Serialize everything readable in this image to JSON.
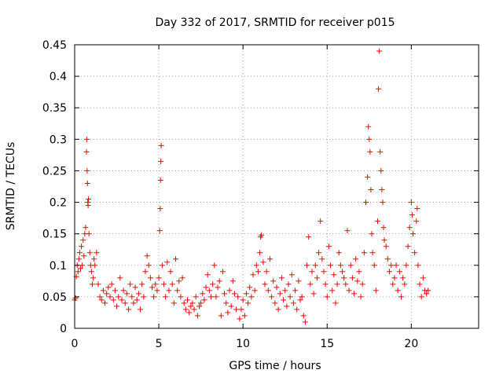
{
  "chart_data": {
    "type": "scatter",
    "title": "Day 332 of 2017, SRMTID for receiver p015",
    "xlabel": "GPS time / hours",
    "ylabel": "SRMTID / TECUs",
    "xlim": [
      0,
      24
    ],
    "ylim": [
      0,
      0.45
    ],
    "xticks": [
      0,
      5,
      10,
      15,
      20
    ],
    "xtick_labels": [
      "0",
      "5",
      "10",
      "15",
      "20"
    ],
    "yticks": [
      0,
      0.05,
      0.1,
      0.15,
      0.2,
      0.25,
      0.3,
      0.35,
      0.4,
      0.45
    ],
    "ytick_labels": [
      "0",
      "0.05",
      "0.1",
      "0.15",
      "0.2",
      "0.25",
      "0.3",
      "0.35",
      "0.4",
      "0.45"
    ],
    "grid": true,
    "marker": "plus",
    "color": "#ff0000",
    "series": [
      {
        "name": "SRMTID",
        "points": [
          [
            0.0,
            0.045
          ],
          [
            0.05,
            0.048
          ],
          [
            0.1,
            0.082
          ],
          [
            0.15,
            0.1
          ],
          [
            0.2,
            0.09
          ],
          [
            0.25,
            0.11
          ],
          [
            0.3,
            0.12
          ],
          [
            0.35,
            0.095
          ],
          [
            0.4,
            0.13
          ],
          [
            0.45,
            0.1
          ],
          [
            0.5,
            0.14
          ],
          [
            0.55,
            0.115
          ],
          [
            0.6,
            0.15
          ],
          [
            0.65,
            0.16
          ],
          [
            0.7,
            0.28
          ],
          [
            0.72,
            0.3
          ],
          [
            0.74,
            0.25
          ],
          [
            0.76,
            0.23
          ],
          [
            0.78,
            0.2
          ],
          [
            0.8,
            0.195
          ],
          [
            0.82,
            0.205
          ],
          [
            0.85,
            0.15
          ],
          [
            0.9,
            0.12
          ],
          [
            0.95,
            0.1
          ],
          [
            1.0,
            0.09
          ],
          [
            1.05,
            0.07
          ],
          [
            1.1,
            0.08
          ],
          [
            1.15,
            0.11
          ],
          [
            1.2,
            0.1
          ],
          [
            1.3,
            0.12
          ],
          [
            1.4,
            0.07
          ],
          [
            1.5,
            0.05
          ],
          [
            1.6,
            0.045
          ],
          [
            1.7,
            0.06
          ],
          [
            1.8,
            0.04
          ],
          [
            1.9,
            0.055
          ],
          [
            2.0,
            0.065
          ],
          [
            2.1,
            0.05
          ],
          [
            2.2,
            0.07
          ],
          [
            2.3,
            0.045
          ],
          [
            2.4,
            0.06
          ],
          [
            2.5,
            0.035
          ],
          [
            2.6,
            0.05
          ],
          [
            2.7,
            0.08
          ],
          [
            2.8,
            0.045
          ],
          [
            2.9,
            0.06
          ],
          [
            3.0,
            0.04
          ],
          [
            3.1,
            0.055
          ],
          [
            3.2,
            0.03
          ],
          [
            3.3,
            0.07
          ],
          [
            3.4,
            0.05
          ],
          [
            3.5,
            0.04
          ],
          [
            3.6,
            0.065
          ],
          [
            3.7,
            0.045
          ],
          [
            3.8,
            0.055
          ],
          [
            3.9,
            0.03
          ],
          [
            4.0,
            0.07
          ],
          [
            4.1,
            0.05
          ],
          [
            4.2,
            0.09
          ],
          [
            4.3,
            0.115
          ],
          [
            4.4,
            0.1
          ],
          [
            4.5,
            0.08
          ],
          [
            4.6,
            0.065
          ],
          [
            4.7,
            0.05
          ],
          [
            4.8,
            0.07
          ],
          [
            4.9,
            0.06
          ],
          [
            5.0,
            0.08
          ],
          [
            5.05,
            0.155
          ],
          [
            5.08,
            0.19
          ],
          [
            5.1,
            0.235
          ],
          [
            5.12,
            0.265
          ],
          [
            5.14,
            0.29
          ],
          [
            5.2,
            0.1
          ],
          [
            5.3,
            0.07
          ],
          [
            5.4,
            0.05
          ],
          [
            5.5,
            0.105
          ],
          [
            5.6,
            0.06
          ],
          [
            5.7,
            0.09
          ],
          [
            5.8,
            0.07
          ],
          [
            5.9,
            0.04
          ],
          [
            6.0,
            0.11
          ],
          [
            6.1,
            0.06
          ],
          [
            6.2,
            0.075
          ],
          [
            6.3,
            0.05
          ],
          [
            6.4,
            0.08
          ],
          [
            6.5,
            0.04
          ],
          [
            6.6,
            0.03
          ],
          [
            6.7,
            0.045
          ],
          [
            6.8,
            0.025
          ],
          [
            6.9,
            0.035
          ],
          [
            7.0,
            0.04
          ],
          [
            7.1,
            0.03
          ],
          [
            7.2,
            0.05
          ],
          [
            7.3,
            0.02
          ],
          [
            7.4,
            0.035
          ],
          [
            7.5,
            0.04
          ],
          [
            7.6,
            0.055
          ],
          [
            7.7,
            0.045
          ],
          [
            7.8,
            0.065
          ],
          [
            7.9,
            0.085
          ],
          [
            8.0,
            0.06
          ],
          [
            8.1,
            0.05
          ],
          [
            8.2,
            0.07
          ],
          [
            8.3,
            0.1
          ],
          [
            8.4,
            0.05
          ],
          [
            8.5,
            0.065
          ],
          [
            8.6,
            0.075
          ],
          [
            8.7,
            0.02
          ],
          [
            8.8,
            0.09
          ],
          [
            8.9,
            0.055
          ],
          [
            9.0,
            0.04
          ],
          [
            9.1,
            0.025
          ],
          [
            9.2,
            0.06
          ],
          [
            9.3,
            0.035
          ],
          [
            9.4,
            0.075
          ],
          [
            9.5,
            0.055
          ],
          [
            9.6,
            0.03
          ],
          [
            9.7,
            0.05
          ],
          [
            9.8,
            0.015
          ],
          [
            9.9,
            0.03
          ],
          [
            10.0,
            0.045
          ],
          [
            10.1,
            0.02
          ],
          [
            10.2,
            0.055
          ],
          [
            10.3,
            0.04
          ],
          [
            10.4,
            0.065
          ],
          [
            10.5,
            0.05
          ],
          [
            10.6,
            0.085
          ],
          [
            10.7,
            0.06
          ],
          [
            10.8,
            0.1
          ],
          [
            10.9,
            0.09
          ],
          [
            11.0,
            0.12
          ],
          [
            11.05,
            0.145
          ],
          [
            11.1,
            0.148
          ],
          [
            11.2,
            0.105
          ],
          [
            11.3,
            0.07
          ],
          [
            11.4,
            0.09
          ],
          [
            11.5,
            0.06
          ],
          [
            11.6,
            0.11
          ],
          [
            11.7,
            0.05
          ],
          [
            11.8,
            0.075
          ],
          [
            11.9,
            0.04
          ],
          [
            12.0,
            0.065
          ],
          [
            12.1,
            0.03
          ],
          [
            12.2,
            0.055
          ],
          [
            12.3,
            0.08
          ],
          [
            12.4,
            0.045
          ],
          [
            12.5,
            0.06
          ],
          [
            12.6,
            0.035
          ],
          [
            12.7,
            0.07
          ],
          [
            12.8,
            0.05
          ],
          [
            12.9,
            0.085
          ],
          [
            13.0,
            0.04
          ],
          [
            13.1,
            0.06
          ],
          [
            13.2,
            0.03
          ],
          [
            13.3,
            0.075
          ],
          [
            13.4,
            0.045
          ],
          [
            13.5,
            0.05
          ],
          [
            13.6,
            0.02
          ],
          [
            13.7,
            0.01
          ],
          [
            13.8,
            0.1
          ],
          [
            13.9,
            0.145
          ],
          [
            14.0,
            0.07
          ],
          [
            14.1,
            0.09
          ],
          [
            14.2,
            0.055
          ],
          [
            14.3,
            0.1
          ],
          [
            14.4,
            0.08
          ],
          [
            14.5,
            0.12
          ],
          [
            14.6,
            0.17
          ],
          [
            14.7,
            0.11
          ],
          [
            14.8,
            0.09
          ],
          [
            14.9,
            0.07
          ],
          [
            15.0,
            0.05
          ],
          [
            15.1,
            0.13
          ],
          [
            15.2,
            0.1
          ],
          [
            15.3,
            0.06
          ],
          [
            15.4,
            0.085
          ],
          [
            15.5,
            0.04
          ],
          [
            15.6,
            0.07
          ],
          [
            15.7,
            0.12
          ],
          [
            15.8,
            0.1
          ],
          [
            15.9,
            0.09
          ],
          [
            16.0,
            0.08
          ],
          [
            16.1,
            0.07
          ],
          [
            16.2,
            0.155
          ],
          [
            16.3,
            0.06
          ],
          [
            16.4,
            0.1
          ],
          [
            16.5,
            0.08
          ],
          [
            16.6,
            0.055
          ],
          [
            16.7,
            0.11
          ],
          [
            16.8,
            0.075
          ],
          [
            16.9,
            0.09
          ],
          [
            17.0,
            0.05
          ],
          [
            17.1,
            0.07
          ],
          [
            17.2,
            0.12
          ],
          [
            17.3,
            0.2
          ],
          [
            17.4,
            0.24
          ],
          [
            17.45,
            0.32
          ],
          [
            17.5,
            0.3
          ],
          [
            17.55,
            0.28
          ],
          [
            17.6,
            0.22
          ],
          [
            17.65,
            0.15
          ],
          [
            17.7,
            0.12
          ],
          [
            17.8,
            0.1
          ],
          [
            17.9,
            0.06
          ],
          [
            18.0,
            0.17
          ],
          [
            18.05,
            0.38
          ],
          [
            18.1,
            0.44
          ],
          [
            18.15,
            0.28
          ],
          [
            18.2,
            0.25
          ],
          [
            18.25,
            0.22
          ],
          [
            18.3,
            0.2
          ],
          [
            18.35,
            0.16
          ],
          [
            18.4,
            0.14
          ],
          [
            18.5,
            0.13
          ],
          [
            18.6,
            0.11
          ],
          [
            18.7,
            0.09
          ],
          [
            18.8,
            0.1
          ],
          [
            18.9,
            0.07
          ],
          [
            19.0,
            0.08
          ],
          [
            19.1,
            0.1
          ],
          [
            19.2,
            0.06
          ],
          [
            19.3,
            0.09
          ],
          [
            19.4,
            0.05
          ],
          [
            19.5,
            0.08
          ],
          [
            19.6,
            0.07
          ],
          [
            19.7,
            0.1
          ],
          [
            19.8,
            0.13
          ],
          [
            19.9,
            0.16
          ],
          [
            20.0,
            0.2
          ],
          [
            20.05,
            0.18
          ],
          [
            20.1,
            0.15
          ],
          [
            20.2,
            0.12
          ],
          [
            20.3,
            0.17
          ],
          [
            20.35,
            0.19
          ],
          [
            20.4,
            0.1
          ],
          [
            20.5,
            0.07
          ],
          [
            20.6,
            0.05
          ],
          [
            20.7,
            0.08
          ],
          [
            20.8,
            0.06
          ],
          [
            20.9,
            0.055
          ],
          [
            21.0,
            0.06
          ]
        ]
      }
    ]
  }
}
